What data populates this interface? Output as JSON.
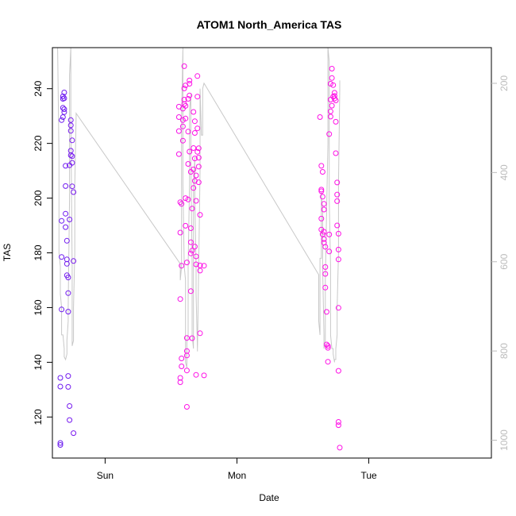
{
  "chart_data": {
    "type": "scatter",
    "title": "ATOM1 North_America TAS",
    "xlabel": "Date",
    "ylabel": "TAS",
    "x_ticks": [
      "Sun",
      "Mon",
      "Tue"
    ],
    "x_tick_values": [
      1.0,
      2.0,
      3.0
    ],
    "xlim": [
      0.6,
      3.93
    ],
    "y_ticks": [
      120,
      140,
      160,
      180,
      200,
      220,
      240
    ],
    "ylim": [
      105,
      255
    ],
    "y2_ticks": [
      200,
      400,
      600,
      800,
      1000
    ],
    "y2lim": [
      1040,
      120
    ],
    "y2_reversed": true,
    "grid": false,
    "colors": {
      "points_start": "#6a1bf0",
      "points_end": "#ff10e6",
      "line": "#c8c8c8",
      "axis": "#000000",
      "axis_right": "#bbbbbb"
    },
    "series": [
      {
        "type": "scatter",
        "points": [
          [
            0.66,
            110.5
          ],
          [
            0.66,
            109.8
          ],
          [
            0.66,
            134.3
          ],
          [
            0.66,
            131.1
          ],
          [
            0.67,
            159.3
          ],
          [
            0.67,
            178.5
          ],
          [
            0.67,
            191.7
          ],
          [
            0.67,
            228.5
          ],
          [
            0.68,
            229.6
          ],
          [
            0.68,
            233.0
          ],
          [
            0.68,
            236.3
          ],
          [
            0.68,
            237.2
          ],
          [
            0.69,
            231.4
          ],
          [
            0.69,
            232.5
          ],
          [
            0.69,
            236.5
          ],
          [
            0.69,
            238.6
          ],
          [
            0.7,
            211.8
          ],
          [
            0.7,
            204.4
          ],
          [
            0.7,
            194.3
          ],
          [
            0.7,
            189.4
          ],
          [
            0.71,
            184.4
          ],
          [
            0.71,
            177.6
          ],
          [
            0.71,
            176.0
          ],
          [
            0.71,
            171.8
          ],
          [
            0.72,
            171.0
          ],
          [
            0.72,
            165.3
          ],
          [
            0.72,
            158.5
          ],
          [
            0.72,
            135.0
          ],
          [
            0.72,
            131.0
          ],
          [
            0.73,
            124.0
          ],
          [
            0.73,
            118.9
          ],
          [
            0.73,
            192.2
          ],
          [
            0.73,
            212.0
          ],
          [
            0.74,
            217.3
          ],
          [
            0.74,
            215.7
          ],
          [
            0.74,
            224.6
          ],
          [
            0.74,
            228.5
          ],
          [
            0.74,
            226.6
          ],
          [
            0.75,
            221.1
          ],
          [
            0.75,
            215.3
          ],
          [
            0.75,
            212.9
          ],
          [
            0.75,
            204.3
          ],
          [
            0.76,
            202.2
          ],
          [
            0.76,
            177.0
          ],
          [
            0.76,
            114.1
          ],
          [
            1.56,
            233.4
          ],
          [
            1.56,
            229.6
          ],
          [
            1.56,
            224.5
          ],
          [
            1.56,
            216.1
          ],
          [
            1.57,
            198.5
          ],
          [
            1.57,
            187.4
          ],
          [
            1.57,
            163.1
          ],
          [
            1.57,
            134.3
          ],
          [
            1.57,
            132.7
          ],
          [
            1.58,
            138.5
          ],
          [
            1.58,
            141.4
          ],
          [
            1.58,
            175.3
          ],
          [
            1.58,
            197.9
          ],
          [
            1.59,
            221.0
          ],
          [
            1.59,
            226.2
          ],
          [
            1.59,
            228.5
          ],
          [
            1.59,
            232.7
          ],
          [
            1.6,
            234.4
          ],
          [
            1.6,
            236.0
          ],
          [
            1.6,
            240.1
          ],
          [
            1.6,
            248.2
          ],
          [
            1.61,
            241.2
          ],
          [
            1.61,
            233.7
          ],
          [
            1.61,
            229.1
          ],
          [
            1.61,
            200.0
          ],
          [
            1.61,
            189.9
          ],
          [
            1.62,
            176.5
          ],
          [
            1.62,
            148.9
          ],
          [
            1.62,
            144.1
          ],
          [
            1.62,
            142.5
          ],
          [
            1.62,
            137.0
          ],
          [
            1.62,
            123.7
          ],
          [
            1.63,
            199.5
          ],
          [
            1.63,
            212.5
          ],
          [
            1.63,
            224.3
          ],
          [
            1.63,
            236.3
          ],
          [
            1.64,
            241.8
          ],
          [
            1.64,
            243.0
          ],
          [
            1.64,
            237.5
          ],
          [
            1.64,
            217.0
          ],
          [
            1.65,
            209.6
          ],
          [
            1.65,
            189.0
          ],
          [
            1.65,
            183.9
          ],
          [
            1.65,
            179.8
          ],
          [
            1.65,
            166.0
          ],
          [
            1.66,
            148.8
          ],
          [
            1.66,
            180.8
          ],
          [
            1.66,
            196.2
          ],
          [
            1.67,
            203.7
          ],
          [
            1.67,
            210.5
          ],
          [
            1.67,
            218.3
          ],
          [
            1.67,
            231.5
          ],
          [
            1.68,
            228.1
          ],
          [
            1.68,
            223.8
          ],
          [
            1.68,
            214.5
          ],
          [
            1.68,
            206.3
          ],
          [
            1.68,
            182.3
          ],
          [
            1.69,
            178.7
          ],
          [
            1.69,
            175.8
          ],
          [
            1.69,
            199.0
          ],
          [
            1.69,
            208.3
          ],
          [
            1.7,
            216.9
          ],
          [
            1.7,
            225.5
          ],
          [
            1.7,
            237.1
          ],
          [
            1.7,
            244.6
          ],
          [
            1.71,
            218.2
          ],
          [
            1.71,
            214.8
          ],
          [
            1.71,
            211.5
          ],
          [
            1.71,
            205.8
          ],
          [
            1.72,
            193.9
          ],
          [
            1.72,
            175.4
          ],
          [
            1.72,
            173.5
          ],
          [
            1.72,
            150.6
          ],
          [
            1.69,
            135.4
          ],
          [
            1.75,
            135.2
          ],
          [
            1.75,
            175.3
          ],
          [
            2.63,
            229.6
          ],
          [
            2.64,
            211.8
          ],
          [
            2.64,
            203.1
          ],
          [
            2.64,
            202.5
          ],
          [
            2.64,
            192.5
          ],
          [
            2.64,
            188.5
          ],
          [
            2.65,
            186.8
          ],
          [
            2.65,
            209.6
          ],
          [
            2.65,
            200.5
          ],
          [
            2.66,
            197.9
          ],
          [
            2.66,
            195.8
          ],
          [
            2.66,
            187.7
          ],
          [
            2.66,
            185.0
          ],
          [
            2.66,
            183.7
          ],
          [
            2.67,
            182.2
          ],
          [
            2.67,
            174.8
          ],
          [
            2.67,
            172.3
          ],
          [
            2.67,
            167.3
          ],
          [
            2.68,
            158.4
          ],
          [
            2.68,
            146.5
          ],
          [
            2.69,
            140.2
          ],
          [
            2.69,
            145.3
          ],
          [
            2.69,
            146.0
          ],
          [
            2.7,
            180.5
          ],
          [
            2.7,
            186.7
          ],
          [
            2.7,
            223.4
          ],
          [
            2.71,
            231.7
          ],
          [
            2.71,
            229.8
          ],
          [
            2.71,
            236.0
          ],
          [
            2.71,
            241.8
          ],
          [
            2.72,
            243.9
          ],
          [
            2.72,
            247.3
          ],
          [
            2.72,
            233.8
          ],
          [
            2.73,
            237.1
          ],
          [
            2.73,
            241.3
          ],
          [
            2.74,
            238.5
          ],
          [
            2.74,
            237.4
          ],
          [
            2.74,
            236.4
          ],
          [
            2.75,
            235.7
          ],
          [
            2.75,
            227.9
          ],
          [
            2.75,
            216.4
          ],
          [
            2.76,
            205.7
          ],
          [
            2.76,
            201.3
          ],
          [
            2.76,
            198.9
          ],
          [
            2.76,
            190.0
          ],
          [
            2.77,
            187.0
          ],
          [
            2.77,
            181.2
          ],
          [
            2.77,
            177.6
          ],
          [
            2.77,
            159.9
          ],
          [
            2.77,
            136.9
          ],
          [
            2.77,
            118.2
          ],
          [
            2.77,
            117.0
          ],
          [
            2.78,
            108.8
          ]
        ]
      },
      {
        "type": "line",
        "points": [
          [
            0.64,
            255
          ],
          [
            0.65,
            215
          ],
          [
            0.65,
            180
          ],
          [
            0.66,
            175
          ],
          [
            0.66,
            165
          ],
          [
            0.67,
            160
          ],
          [
            0.67,
            150
          ],
          [
            0.68,
            150
          ],
          [
            0.69,
            145
          ],
          [
            0.69,
            142
          ],
          [
            0.7,
            141
          ],
          [
            0.71,
            143
          ],
          [
            0.71,
            148
          ],
          [
            0.72,
            155
          ],
          [
            0.72,
            160
          ],
          [
            0.73,
            200
          ],
          [
            0.73,
            245
          ],
          [
            0.74,
            255
          ],
          [
            0.74,
            230
          ],
          [
            0.75,
            175
          ],
          [
            0.75,
            146
          ],
          [
            0.76,
            148
          ],
          [
            0.76,
            160
          ],
          [
            0.77,
            180
          ],
          [
            0.77,
            205
          ],
          [
            0.78,
            230
          ],
          [
            0.78,
            231
          ],
          [
            1.57,
            176
          ],
          [
            1.57,
            170
          ],
          [
            1.58,
            175
          ],
          [
            1.58,
            190
          ],
          [
            1.58,
            210
          ],
          [
            1.58,
            230
          ],
          [
            1.59,
            255
          ],
          [
            1.59,
            240
          ],
          [
            1.59,
            205
          ],
          [
            1.6,
            175
          ],
          [
            1.61,
            170
          ],
          [
            1.61,
            165
          ],
          [
            1.61,
            140
          ],
          [
            1.62,
            138
          ],
          [
            1.62,
            148
          ],
          [
            1.63,
            150
          ],
          [
            1.63,
            175
          ],
          [
            1.64,
            205
          ],
          [
            1.64,
            212
          ],
          [
            1.64,
            232
          ],
          [
            1.65,
            238
          ],
          [
            1.65,
            215
          ],
          [
            1.66,
            175
          ],
          [
            1.66,
            150
          ],
          [
            1.67,
            145
          ],
          [
            1.67,
            175
          ],
          [
            1.67,
            205
          ],
          [
            1.68,
            215
          ],
          [
            1.68,
            200
          ],
          [
            1.69,
            175
          ],
          [
            1.69,
            165
          ],
          [
            1.7,
            145
          ],
          [
            1.7,
            144
          ],
          [
            1.71,
            175
          ],
          [
            1.72,
            210
          ],
          [
            1.72,
            225
          ],
          [
            1.72,
            240
          ],
          [
            1.73,
            223
          ],
          [
            1.74,
            223
          ],
          [
            1.74,
            240
          ],
          [
            1.75,
            242
          ],
          [
            2.62,
            172
          ],
          [
            2.62,
            155
          ],
          [
            2.63,
            150
          ],
          [
            2.63,
            165
          ],
          [
            2.63,
            178
          ],
          [
            2.64,
            178
          ],
          [
            2.64,
            202
          ],
          [
            2.65,
            195
          ],
          [
            2.65,
            185
          ],
          [
            2.65,
            175
          ],
          [
            2.66,
            150
          ],
          [
            2.66,
            145
          ],
          [
            2.67,
            148
          ],
          [
            2.67,
            170
          ],
          [
            2.68,
            195
          ],
          [
            2.69,
            220
          ],
          [
            2.69,
            255
          ],
          [
            2.7,
            250
          ],
          [
            2.7,
            225
          ],
          [
            2.7,
            200
          ],
          [
            2.71,
            175
          ],
          [
            2.71,
            150
          ],
          [
            2.72,
            145
          ],
          [
            2.73,
            145
          ],
          [
            2.73,
            143
          ],
          [
            2.74,
            140
          ],
          [
            2.74,
            141
          ],
          [
            2.75,
            141
          ],
          [
            2.75,
            145
          ],
          [
            2.76,
            150
          ],
          [
            2.76,
            160
          ],
          [
            2.77,
            180
          ],
          [
            2.77,
            205
          ],
          [
            2.78,
            240
          ],
          [
            2.78,
            243
          ]
        ]
      }
    ]
  }
}
